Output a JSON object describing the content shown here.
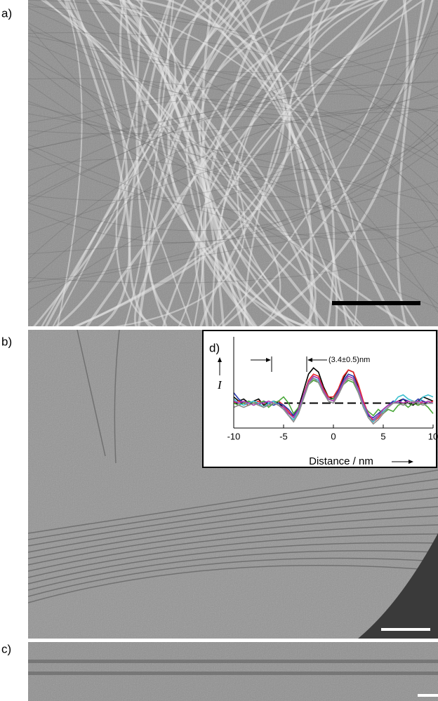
{
  "figure": {
    "panels": [
      {
        "label": "a)"
      },
      {
        "label": "b)"
      },
      {
        "label": "c)"
      }
    ]
  },
  "chart_data": {
    "type": "line",
    "panel_label": "d)",
    "annotation": "(3.4±0.5)nm",
    "x_label": "Distance / nm",
    "y_label": "I",
    "x": [
      -10,
      -9.5,
      -9,
      -8.5,
      -8,
      -7.5,
      -7,
      -6.5,
      -6,
      -5.5,
      -5,
      -4.5,
      -4,
      -3.5,
      -3,
      -2.5,
      -2,
      -1.5,
      -1,
      -0.5,
      0,
      0.5,
      1,
      1.5,
      2,
      2.5,
      3,
      3.5,
      4,
      4.5,
      5,
      5.5,
      6,
      6.5,
      7,
      7.5,
      8,
      8.5,
      9,
      9.5,
      10
    ],
    "xlim": [
      -10,
      10
    ],
    "xticks": [
      -10,
      -5,
      0,
      5,
      10
    ],
    "ylim": [
      -1.2,
      3.2
    ],
    "series": [
      {
        "color": "#000000",
        "values": [
          0.3,
          0.1,
          0.2,
          0.0,
          0.1,
          0.2,
          -0.1,
          0.0,
          0.1,
          0.0,
          -0.2,
          -0.5,
          -0.6,
          -0.2,
          0.6,
          1.4,
          1.7,
          1.5,
          0.8,
          0.3,
          0.2,
          0.6,
          1.2,
          1.6,
          1.5,
          0.8,
          0.0,
          -0.6,
          -0.8,
          -0.6,
          -0.3,
          -0.1,
          0.0,
          0.1,
          0.2,
          0.0,
          -0.1,
          0.1,
          0.3,
          0.2,
          0.1
        ]
      },
      {
        "color": "#e8262a",
        "values": [
          0.0,
          0.1,
          0.0,
          -0.1,
          0.0,
          0.1,
          0.0,
          -0.1,
          0.0,
          0.1,
          -0.1,
          -0.4,
          -0.7,
          -0.4,
          0.4,
          1.1,
          1.4,
          1.3,
          0.7,
          0.3,
          0.3,
          0.7,
          1.3,
          1.6,
          1.5,
          0.9,
          0.1,
          -0.5,
          -0.9,
          -0.7,
          -0.4,
          -0.2,
          0.0,
          0.1,
          0.0,
          0.1,
          0.0,
          -0.1,
          0.1,
          0.0,
          0.1
        ]
      },
      {
        "color": "#2a3ab0",
        "values": [
          0.5,
          0.2,
          0.0,
          0.1,
          0.0,
          -0.1,
          0.1,
          0.0,
          -0.1,
          0.0,
          -0.1,
          -0.3,
          -0.6,
          -0.3,
          0.3,
          1.0,
          1.3,
          1.2,
          0.6,
          0.2,
          0.2,
          0.6,
          1.1,
          1.4,
          1.3,
          0.7,
          0.0,
          -0.6,
          -0.7,
          -0.5,
          -0.3,
          -0.1,
          0.1,
          0.0,
          0.2,
          0.1,
          0.0,
          0.2,
          0.1,
          0.0,
          0.0
        ]
      },
      {
        "color": "#4aa83a",
        "values": [
          0.0,
          -0.1,
          0.0,
          0.1,
          0.0,
          0.0,
          0.1,
          -0.2,
          0.0,
          0.1,
          0.3,
          0.0,
          -0.5,
          -0.2,
          0.3,
          0.9,
          1.1,
          1.0,
          0.5,
          0.2,
          0.2,
          0.5,
          0.9,
          1.1,
          1.0,
          0.5,
          -0.1,
          -0.4,
          -0.6,
          -0.3,
          -0.5,
          -0.3,
          -0.4,
          -0.1,
          0.0,
          -0.2,
          0.0,
          -0.1,
          0.0,
          -0.2,
          -0.5
        ]
      },
      {
        "color": "#3cc0d0",
        "values": [
          0.2,
          0.0,
          -0.1,
          0.0,
          0.1,
          0.0,
          -0.2,
          0.0,
          0.1,
          -0.1,
          -0.3,
          -0.6,
          -0.8,
          -0.4,
          0.3,
          1.0,
          1.2,
          1.1,
          0.6,
          0.2,
          0.1,
          0.5,
          1.0,
          1.3,
          1.2,
          0.6,
          -0.1,
          -0.7,
          -0.9,
          -0.6,
          -0.4,
          -0.2,
          0.0,
          0.3,
          0.4,
          0.2,
          0.1,
          0.0,
          0.3,
          0.4,
          0.3
        ]
      },
      {
        "color": "#b03ab0",
        "values": [
          0.1,
          0.0,
          0.1,
          0.0,
          -0.1,
          0.0,
          0.0,
          0.1,
          0.0,
          -0.1,
          -0.2,
          -0.5,
          -0.7,
          -0.3,
          0.4,
          1.0,
          1.3,
          1.2,
          0.6,
          0.2,
          0.1,
          0.5,
          1.0,
          1.3,
          1.2,
          0.7,
          0.0,
          -0.5,
          -0.8,
          -0.6,
          -0.3,
          -0.1,
          0.0,
          0.1,
          0.0,
          0.1,
          0.0,
          0.1,
          0.0,
          0.1,
          0.0
        ]
      },
      {
        "color": "#8c8c8c",
        "values": [
          -0.2,
          -0.1,
          -0.2,
          -0.1,
          0.0,
          -0.1,
          -0.2,
          -0.1,
          0.0,
          -0.1,
          -0.3,
          -0.6,
          -0.9,
          -0.5,
          0.2,
          0.9,
          1.2,
          1.0,
          0.5,
          0.1,
          0.0,
          0.4,
          0.9,
          1.2,
          1.1,
          0.5,
          -0.2,
          -0.7,
          -1.0,
          -0.8,
          -0.5,
          -0.2,
          0.0,
          0.0,
          -0.1,
          0.0,
          0.1,
          0.0,
          -0.1,
          0.0,
          0.0
        ]
      }
    ]
  }
}
